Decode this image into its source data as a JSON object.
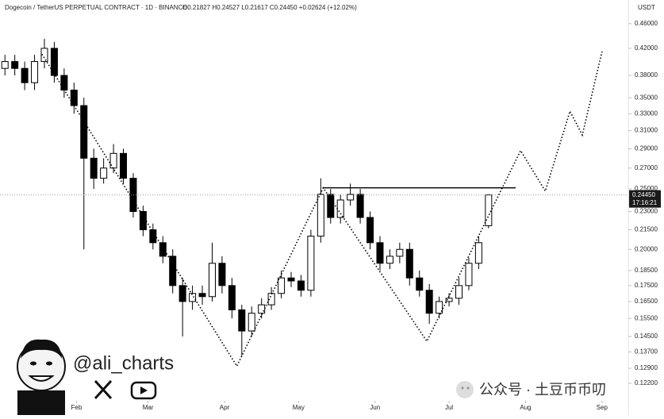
{
  "chart_data": {
    "type": "candlestick",
    "title": "Dogecoin / TetherUS PERPETUAL CONTRACT · 1D · BINANCE",
    "subtitle": "O0.21827 H0.24527 L0.21617 C0.24450 +0.02624 (+12.02%)",
    "y_axis_label": "USDT",
    "log_scale": true,
    "x": [
      2,
      6,
      10,
      14,
      18,
      22,
      26,
      30,
      34,
      38,
      42,
      46,
      50,
      54,
      58,
      62,
      66,
      70,
      74,
      78,
      82,
      86,
      90,
      94,
      98,
      102,
      106,
      110,
      114,
      118,
      122,
      126,
      130,
      134,
      138,
      142,
      146,
      150,
      154,
      158,
      162,
      166,
      170,
      174,
      178,
      182,
      186,
      190,
      194,
      198
    ],
    "open": [
      0.39,
      0.4,
      0.39,
      0.37,
      0.4,
      0.42,
      0.38,
      0.36,
      0.34,
      0.28,
      0.26,
      0.27,
      0.285,
      0.26,
      0.23,
      0.215,
      0.205,
      0.195,
      0.175,
      0.165,
      0.17,
      0.168,
      0.19,
      0.175,
      0.16,
      0.148,
      0.158,
      0.163,
      0.17,
      0.18,
      0.178,
      0.172,
      0.21,
      0.245,
      0.225,
      0.24,
      0.245,
      0.225,
      0.205,
      0.19,
      0.195,
      0.2,
      0.18,
      0.172,
      0.158,
      0.165,
      0.167,
      0.175,
      0.19,
      0.21827
    ],
    "high": [
      0.41,
      0.41,
      0.4,
      0.41,
      0.435,
      0.43,
      0.39,
      0.37,
      0.35,
      0.29,
      0.28,
      0.295,
      0.29,
      0.265,
      0.235,
      0.22,
      0.21,
      0.2,
      0.18,
      0.175,
      0.175,
      0.205,
      0.195,
      0.18,
      0.163,
      0.162,
      0.167,
      0.174,
      0.185,
      0.184,
      0.182,
      0.215,
      0.26,
      0.25,
      0.245,
      0.255,
      0.25,
      0.23,
      0.21,
      0.2,
      0.205,
      0.205,
      0.185,
      0.176,
      0.168,
      0.17,
      0.18,
      0.194,
      0.21,
      0.24527
    ],
    "low": [
      0.38,
      0.38,
      0.36,
      0.36,
      0.39,
      0.37,
      0.35,
      0.33,
      0.2,
      0.25,
      0.255,
      0.265,
      0.255,
      0.225,
      0.21,
      0.2,
      0.19,
      0.17,
      0.145,
      0.16,
      0.163,
      0.165,
      0.17,
      0.155,
      0.135,
      0.145,
      0.155,
      0.16,
      0.167,
      0.174,
      0.168,
      0.168,
      0.205,
      0.22,
      0.22,
      0.235,
      0.22,
      0.2,
      0.185,
      0.186,
      0.19,
      0.175,
      0.168,
      0.152,
      0.155,
      0.162,
      0.163,
      0.172,
      0.186,
      0.21617
    ],
    "close": [
      0.4,
      0.39,
      0.37,
      0.4,
      0.42,
      0.38,
      0.36,
      0.34,
      0.28,
      0.26,
      0.27,
      0.285,
      0.26,
      0.23,
      0.215,
      0.205,
      0.195,
      0.175,
      0.165,
      0.17,
      0.168,
      0.19,
      0.175,
      0.16,
      0.148,
      0.158,
      0.163,
      0.17,
      0.18,
      0.178,
      0.172,
      0.21,
      0.245,
      0.225,
      0.24,
      0.245,
      0.225,
      0.205,
      0.19,
      0.195,
      0.2,
      0.18,
      0.172,
      0.158,
      0.165,
      0.167,
      0.175,
      0.19,
      0.205,
      0.2445
    ],
    "up_color": "#ffffff",
    "down_color": "#000000",
    "pattern": {
      "x": [
        17,
        96,
        131,
        173,
        211,
        221,
        231,
        236,
        244
      ],
      "values": [
        0.411,
        0.13,
        0.251,
        0.1425,
        0.288,
        0.248,
        0.333,
        0.305,
        0.415
      ]
    },
    "resistance": {
      "x": [
        131,
        209
      ],
      "values": [
        0.251,
        0.251
      ]
    },
    "last_price": {
      "value": 0.2445,
      "label": "0.24450"
    },
    "countdown": "17:16:21",
    "xlim": [
      0,
      254
    ],
    "xticks": [
      {
        "value": 31,
        "label": "Feb"
      },
      {
        "value": 60,
        "label": "Mar"
      },
      {
        "value": 91,
        "label": "Apr"
      },
      {
        "value": 121,
        "label": "May"
      },
      {
        "value": 152,
        "label": "Jun"
      },
      {
        "value": 182,
        "label": "Jul"
      },
      {
        "value": 213,
        "label": "Aug"
      },
      {
        "value": 244,
        "label": "Sep"
      }
    ],
    "ylim": [
      0.1144,
      0.502
    ],
    "yticks": [
      {
        "value": 0.46,
        "label": "0.46000"
      },
      {
        "value": 0.42,
        "label": "0.42000"
      },
      {
        "value": 0.38,
        "label": "0.38000"
      },
      {
        "value": 0.35,
        "label": "0.35000"
      },
      {
        "value": 0.33,
        "label": "0.33000"
      },
      {
        "value": 0.31,
        "label": "0.31000"
      },
      {
        "value": 0.29,
        "label": "0.29000"
      },
      {
        "value": 0.27,
        "label": "0.27000"
      },
      {
        "value": 0.25,
        "label": "0.25000"
      },
      {
        "value": 0.23,
        "label": "0.23000"
      },
      {
        "value": 0.215,
        "label": "0.21500"
      },
      {
        "value": 0.2,
        "label": "0.20000"
      },
      {
        "value": 0.185,
        "label": "0.18500"
      },
      {
        "value": 0.175,
        "label": "0.17500"
      },
      {
        "value": 0.165,
        "label": "0.16500"
      },
      {
        "value": 0.155,
        "label": "0.15500"
      },
      {
        "value": 0.145,
        "label": "0.14500"
      },
      {
        "value": 0.137,
        "label": "0.13700"
      },
      {
        "value": 0.129,
        "label": "0.12900"
      },
      {
        "value": 0.122,
        "label": "0.12200"
      }
    ],
    "handle": "@ali_charts",
    "watermark": "公众号 · 土豆币币叨"
  }
}
